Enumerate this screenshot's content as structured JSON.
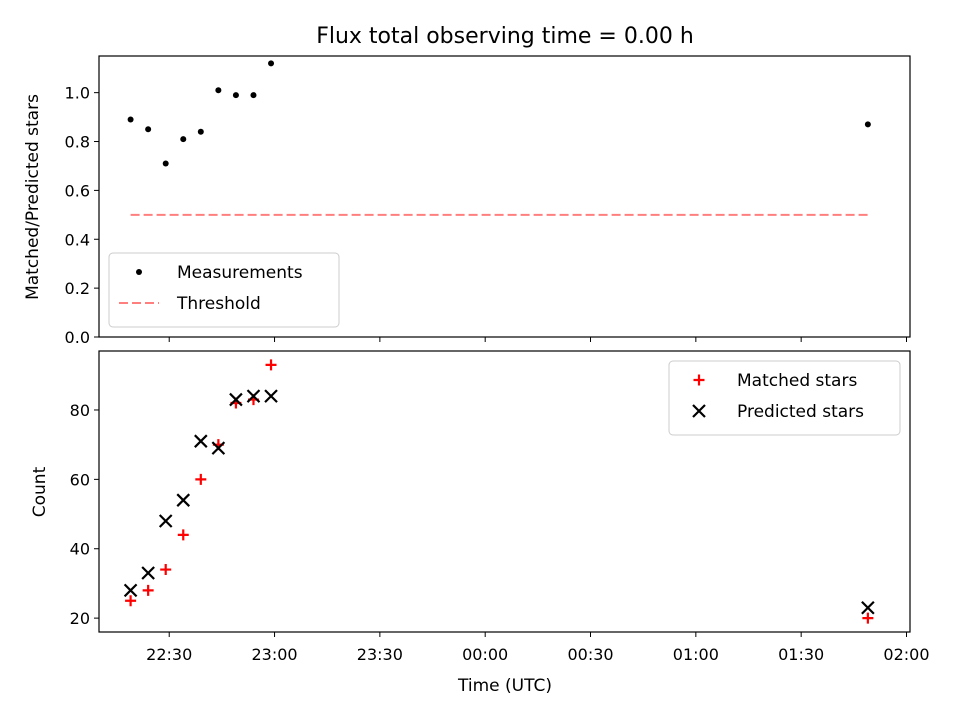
{
  "title": "Flux total observing time = 0.00 h",
  "chart_data": [
    {
      "type": "scatter",
      "ylabel": "Matched/Predicted stars",
      "ylim": [
        0,
        1.15
      ],
      "yticks": [
        "0.0",
        "0.2",
        "0.4",
        "0.6",
        "0.8",
        "1.0"
      ],
      "xlim": [
        "22:10",
        "02:01"
      ],
      "legend_position": "lower-left",
      "series": [
        {
          "name": "Measurements",
          "marker": "dot",
          "color": "#000000",
          "points": [
            {
              "x": "22:19",
              "y": 0.89
            },
            {
              "x": "22:24",
              "y": 0.85
            },
            {
              "x": "22:29",
              "y": 0.71
            },
            {
              "x": "22:34",
              "y": 0.81
            },
            {
              "x": "22:39",
              "y": 0.84
            },
            {
              "x": "22:44",
              "y": 1.01
            },
            {
              "x": "22:49",
              "y": 0.99
            },
            {
              "x": "22:54",
              "y": 0.99
            },
            {
              "x": "22:59",
              "y": 1.12
            },
            {
              "x": "01:49",
              "y": 0.87
            }
          ]
        },
        {
          "name": "Threshold",
          "marker": "dashed-line",
          "color": "#ff7f7f",
          "points": [
            {
              "x": "22:19",
              "y": 0.5
            },
            {
              "x": "01:49",
              "y": 0.5
            }
          ]
        }
      ]
    },
    {
      "type": "scatter",
      "xlabel": "Time (UTC)",
      "ylabel": "Count",
      "ylim": [
        16,
        97
      ],
      "yticks": [
        "20",
        "40",
        "60",
        "80"
      ],
      "xlim": [
        "22:10",
        "02:01"
      ],
      "xticks": [
        "22:30",
        "23:00",
        "23:30",
        "00:00",
        "00:30",
        "01:00",
        "01:30",
        "02:00"
      ],
      "legend_position": "upper-right",
      "series": [
        {
          "name": "Matched stars",
          "marker": "plus",
          "color": "#ff0000",
          "points": [
            {
              "x": "22:19",
              "y": 25
            },
            {
              "x": "22:24",
              "y": 28
            },
            {
              "x": "22:29",
              "y": 34
            },
            {
              "x": "22:34",
              "y": 44
            },
            {
              "x": "22:39",
              "y": 60
            },
            {
              "x": "22:44",
              "y": 70
            },
            {
              "x": "22:49",
              "y": 82
            },
            {
              "x": "22:54",
              "y": 83
            },
            {
              "x": "22:59",
              "y": 93
            },
            {
              "x": "01:49",
              "y": 20
            }
          ]
        },
        {
          "name": "Predicted stars",
          "marker": "x",
          "color": "#000000",
          "points": [
            {
              "x": "22:19",
              "y": 28
            },
            {
              "x": "22:24",
              "y": 33
            },
            {
              "x": "22:29",
              "y": 48
            },
            {
              "x": "22:34",
              "y": 54
            },
            {
              "x": "22:39",
              "y": 71
            },
            {
              "x": "22:44",
              "y": 69
            },
            {
              "x": "22:49",
              "y": 83
            },
            {
              "x": "22:54",
              "y": 84
            },
            {
              "x": "22:59",
              "y": 84
            },
            {
              "x": "01:49",
              "y": 23
            }
          ]
        }
      ]
    }
  ]
}
